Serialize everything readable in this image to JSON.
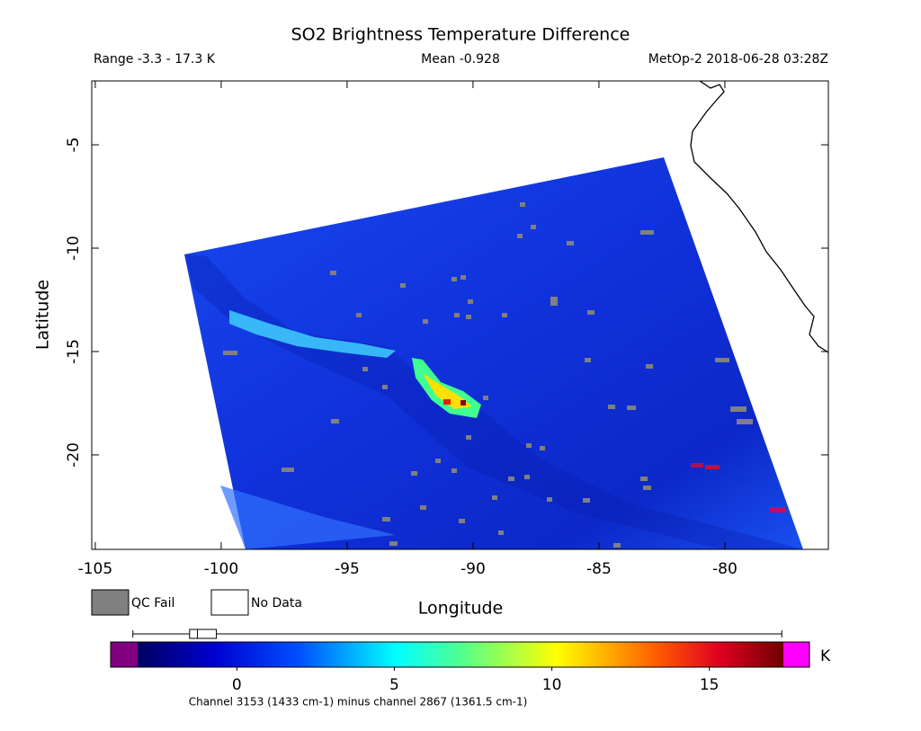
{
  "title": "SO2 Brightness Temperature Difference",
  "range_label": "Range -3.3 - 17.3 K",
  "mean_label": "Mean -0.928",
  "source_label": "MetOp-2 2018-06-28 03:28Z",
  "map": {
    "xlabel": "Longitude",
    "ylabel": "Latitude",
    "xlim": [
      -105.14,
      -75.89
    ],
    "ylim": [
      -24.57,
      -1.91
    ],
    "xticks": [
      -105,
      -100,
      -95,
      -90,
      -85,
      -80
    ],
    "yticks": [
      -5,
      -10,
      -15,
      -20
    ]
  },
  "legend": [
    "QC Fail",
    "No Data"
  ],
  "colorbar": {
    "unit": "K",
    "clim": [
      -3.15,
      17.35
    ],
    "ticks": [
      0,
      5,
      10,
      15
    ],
    "caption": "Channel 3153 (1433 cm-1) minus channel 2867 (1361.5 cm-1)",
    "boxplot": {
      "min": -3.3,
      "q1": -1.5,
      "median": -1.25,
      "q3": -0.65,
      "max": 17.3
    }
  }
}
